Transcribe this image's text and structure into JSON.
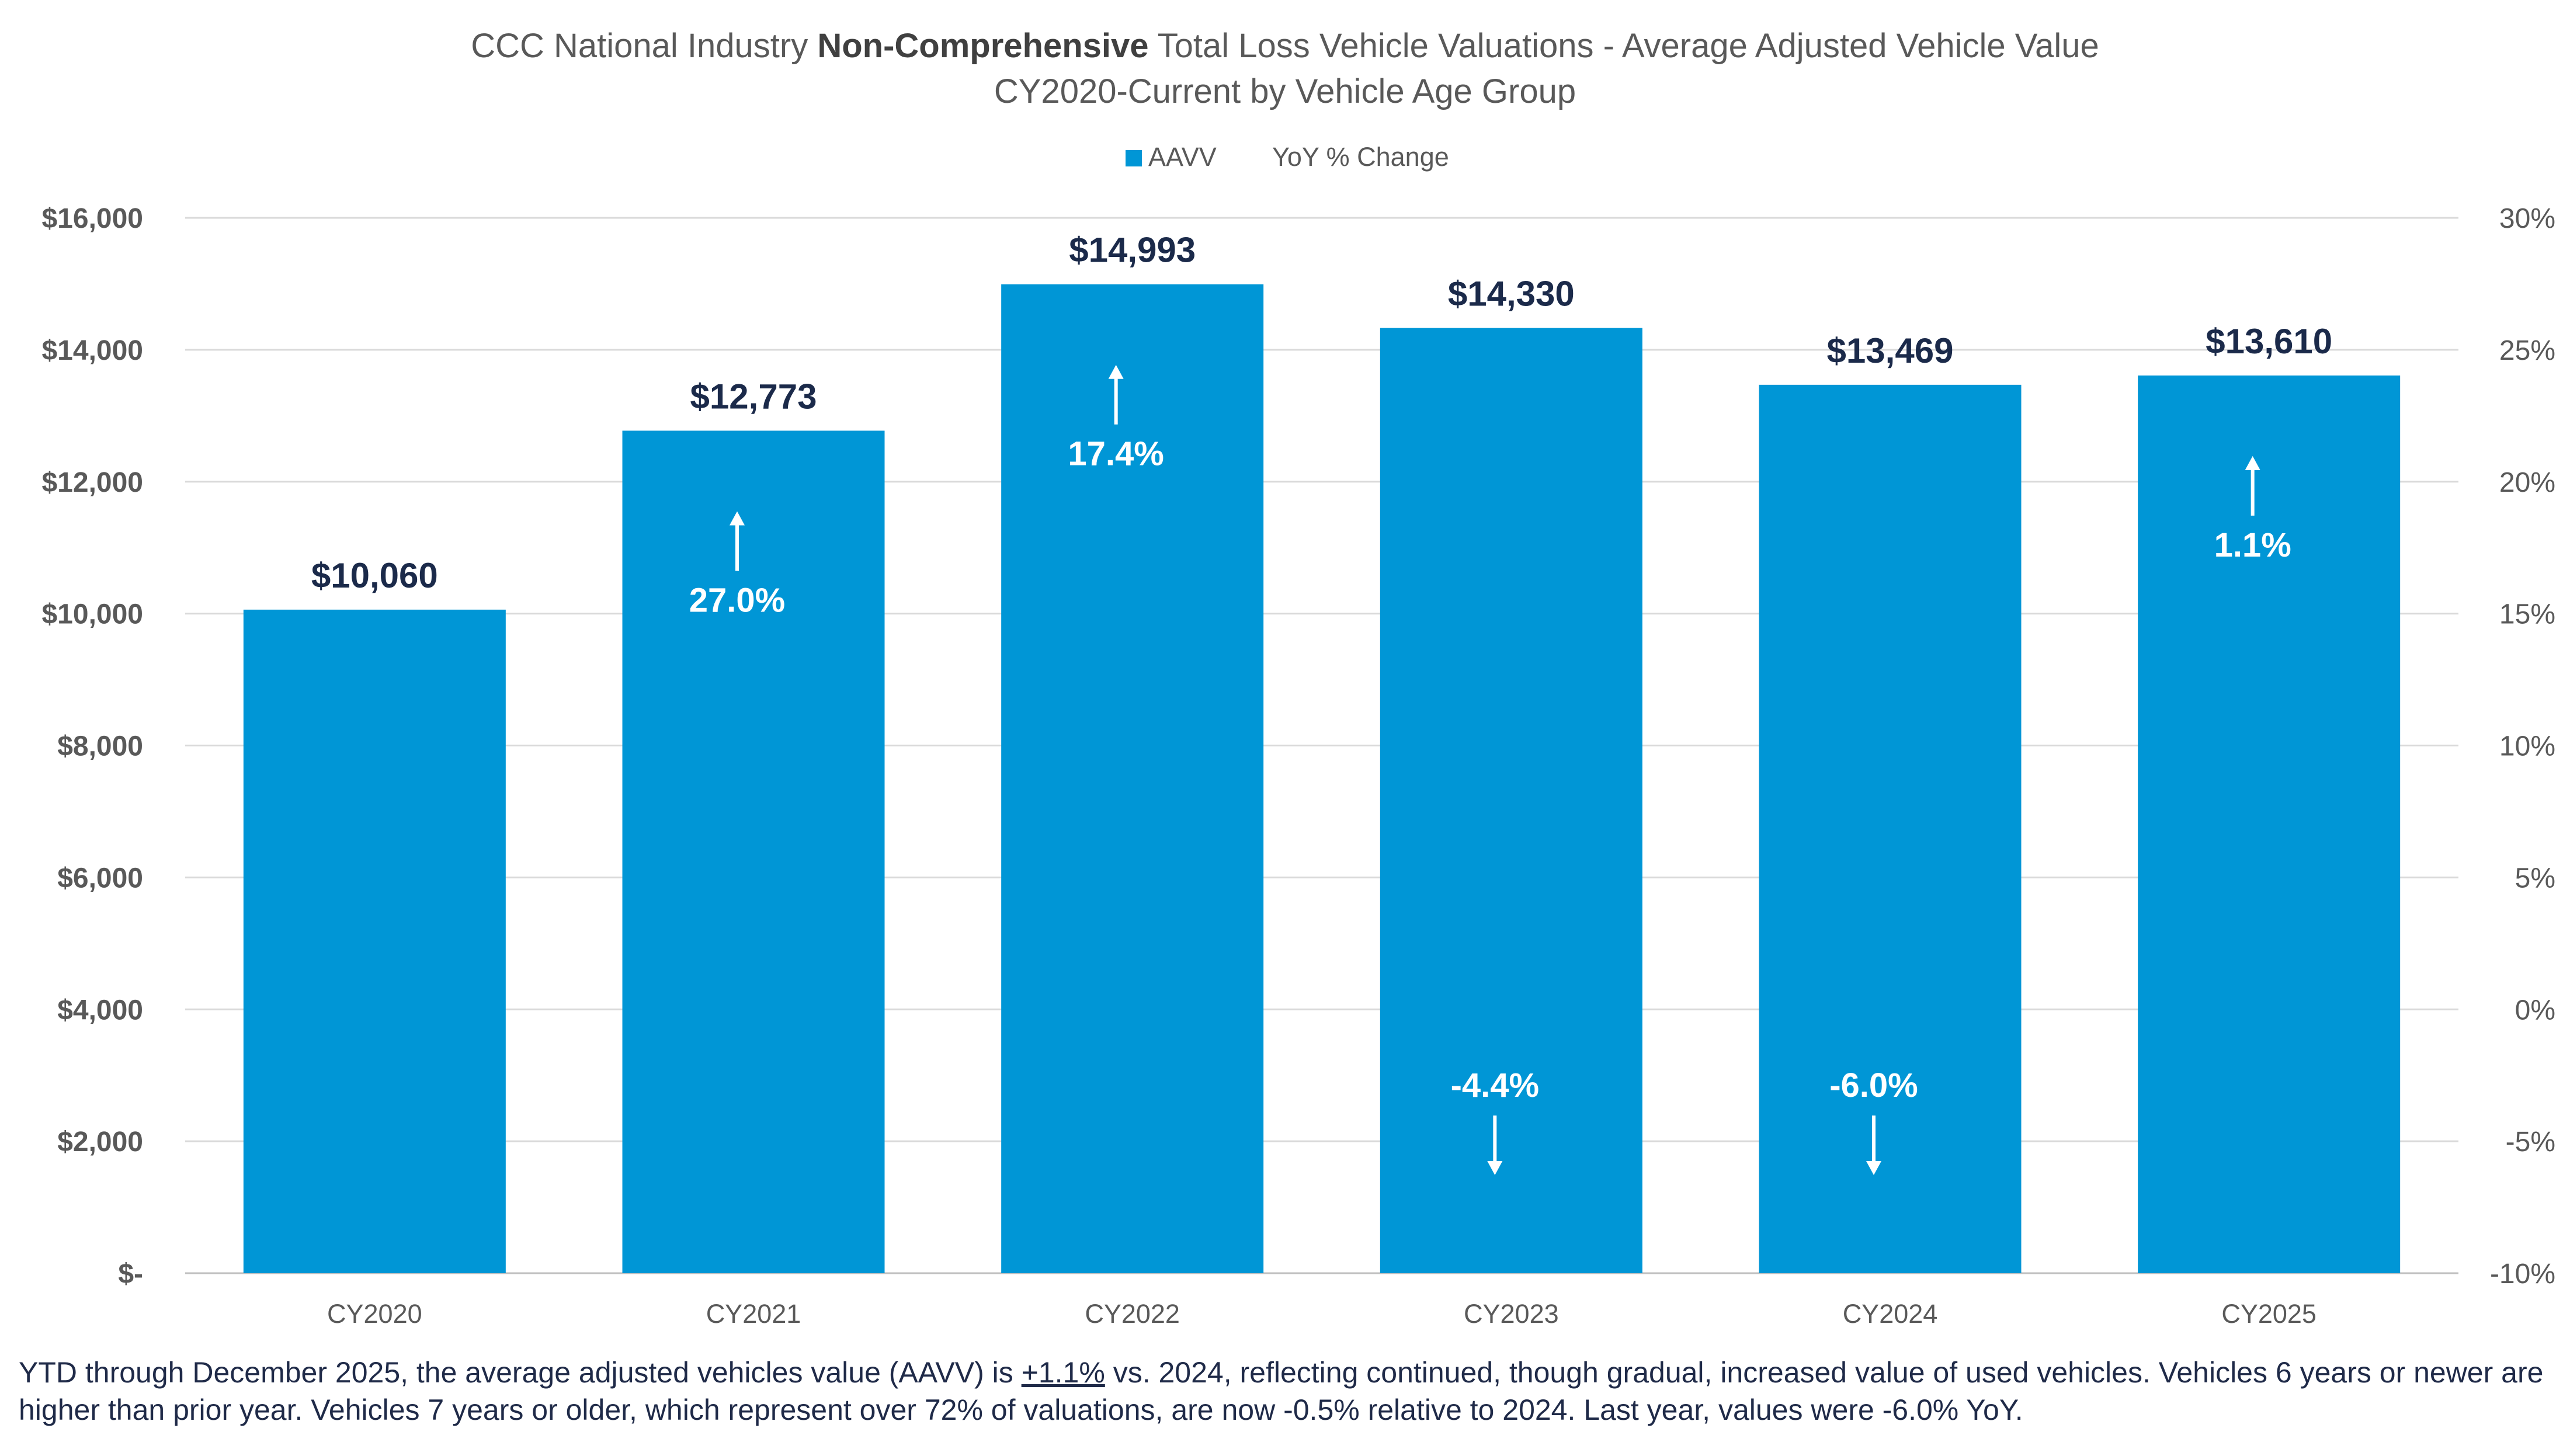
{
  "chart_data": {
    "type": "bar",
    "title_parts": [
      "CCC National Industry ",
      "Non-Comprehensive",
      " Total Loss Vehicle Valuations - Average Adjusted Vehicle Value"
    ],
    "subtitle": "CY2020-Current by Vehicle Age Group",
    "legend": {
      "position": "top",
      "entries": [
        "AAVV",
        "YoY % Change"
      ]
    },
    "categories": [
      "CY2020",
      "CY2021",
      "CY2022",
      "CY2023",
      "CY2024",
      "CY2025"
    ],
    "series": [
      {
        "name": "AAVV",
        "axis": "left",
        "values": [
          10060,
          12773,
          14993,
          14330,
          13469,
          13610
        ],
        "labels": [
          "$10,060",
          "$12,773",
          "$14,993",
          "$14,330",
          "$13,469",
          "$13,610"
        ]
      },
      {
        "name": "YoY % Change",
        "axis": "right",
        "values": [
          null,
          27.0,
          17.4,
          -4.4,
          -6.0,
          1.1
        ],
        "labels": [
          "",
          "27.0%",
          "17.4%",
          "-4.4%",
          "-6.0%",
          "1.1%"
        ]
      }
    ],
    "ylim": [
      0,
      16000
    ],
    "y_ticks": [
      "$-",
      "$2,000",
      "$4,000",
      "$6,000",
      "$8,000",
      "$10,000",
      "$12,000",
      "$14,000",
      "$16,000"
    ],
    "y2lim": [
      -10,
      30
    ],
    "y2_ticks": [
      "-10%",
      "-5%",
      "0%",
      "5%",
      "10%",
      "15%",
      "20%",
      "25%",
      "30%"
    ],
    "grid": true,
    "colors": {
      "bar": "#0096D6",
      "value_label": "#1B2A4A",
      "axis_text": "#595959",
      "grid": "#D9D9D9"
    }
  },
  "footnote": {
    "before": "YTD through December 2025, the average adjusted vehicles value (AAVV) is ",
    "underlined": "+1.1%",
    "after": " vs. 2024, reflecting continued, though gradual, increased value of used vehicles.  Vehicles 6 years or newer are higher than prior year.  Vehicles 7 years or older, which represent over 72% of valuations, are now -0.5% relative to 2024.  Last year, values were -6.0% YoY."
  }
}
